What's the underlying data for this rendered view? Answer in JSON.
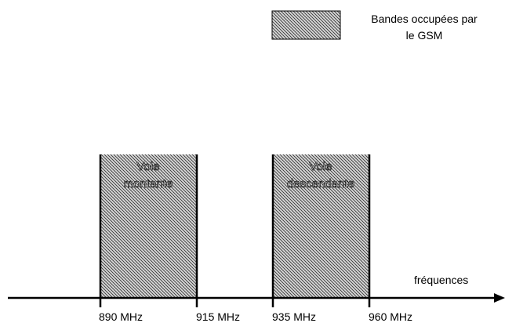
{
  "legend": {
    "label_lines": [
      "Bandes occupées par",
      "le GSM"
    ]
  },
  "bands": [
    {
      "label_lines": [
        "Voie",
        "montante"
      ]
    },
    {
      "label_lines": [
        "Voie",
        "descendante"
      ]
    }
  ],
  "axis": {
    "label": "fréquences",
    "ticks": [
      "890 MHz",
      "915 MHz",
      "935 MHz",
      "960 MHz"
    ]
  }
}
